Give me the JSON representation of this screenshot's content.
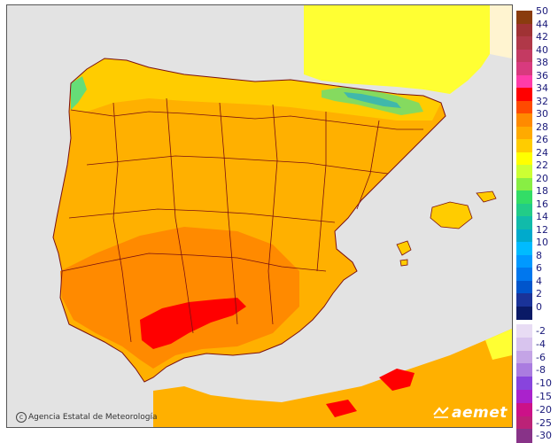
{
  "credit": {
    "icon": "copyright-icon",
    "text": "Agencia Estatal de Meteorología"
  },
  "brand": {
    "name": "aemet",
    "icon": "aemet-logo-icon"
  },
  "colors": {
    "sea": "#e3e3e3",
    "france": "#ffff33",
    "land_base": "#ffb000",
    "border_lines": "#7a1010",
    "hot_spot": "#ff0000"
  },
  "legend": {
    "unit_note": "",
    "positive": [
      {
        "label": "50",
        "color": "#8a3c0e"
      },
      {
        "label": "44",
        "color": "#a03234"
      },
      {
        "label": "42",
        "color": "#b03848"
      },
      {
        "label": "40",
        "color": "#c43a62"
      },
      {
        "label": "38",
        "color": "#d83a7e"
      },
      {
        "label": "36",
        "color": "#ff3ca8"
      },
      {
        "label": "34",
        "color": "#ff0000"
      },
      {
        "label": "32",
        "color": "#ff4a00"
      },
      {
        "label": "30",
        "color": "#ff8a00"
      },
      {
        "label": "28",
        "color": "#ffaa00"
      },
      {
        "label": "26",
        "color": "#ffcc00"
      },
      {
        "label": "24",
        "color": "#ffff00"
      },
      {
        "label": "22",
        "color": "#ccff33"
      },
      {
        "label": "20",
        "color": "#88ee44"
      },
      {
        "label": "18",
        "color": "#33dd66"
      },
      {
        "label": "16",
        "color": "#22cc88"
      },
      {
        "label": "14",
        "color": "#11bbaa"
      },
      {
        "label": "12",
        "color": "#00aacc"
      },
      {
        "label": "10",
        "color": "#00bbff"
      },
      {
        "label": "8",
        "color": "#0099ff"
      },
      {
        "label": "6",
        "color": "#0077ee"
      },
      {
        "label": "4",
        "color": "#0055cc"
      },
      {
        "label": "2",
        "color": "#1a3399"
      },
      {
        "label": "0",
        "color": "#0a1a66"
      }
    ],
    "negative": [
      {
        "label": "-2",
        "color": "#e8dcf4"
      },
      {
        "label": "-4",
        "color": "#d8c4ee"
      },
      {
        "label": "-6",
        "color": "#c4a4e6"
      },
      {
        "label": "-8",
        "color": "#aa7ce0"
      },
      {
        "label": "-10",
        "color": "#8844dd"
      },
      {
        "label": "-15",
        "color": "#aa22cc"
      },
      {
        "label": "-20",
        "color": "#cc1188"
      },
      {
        "label": "-25",
        "color": "#bb2277"
      },
      {
        "label": "-30",
        "color": "#883388"
      }
    ]
  }
}
